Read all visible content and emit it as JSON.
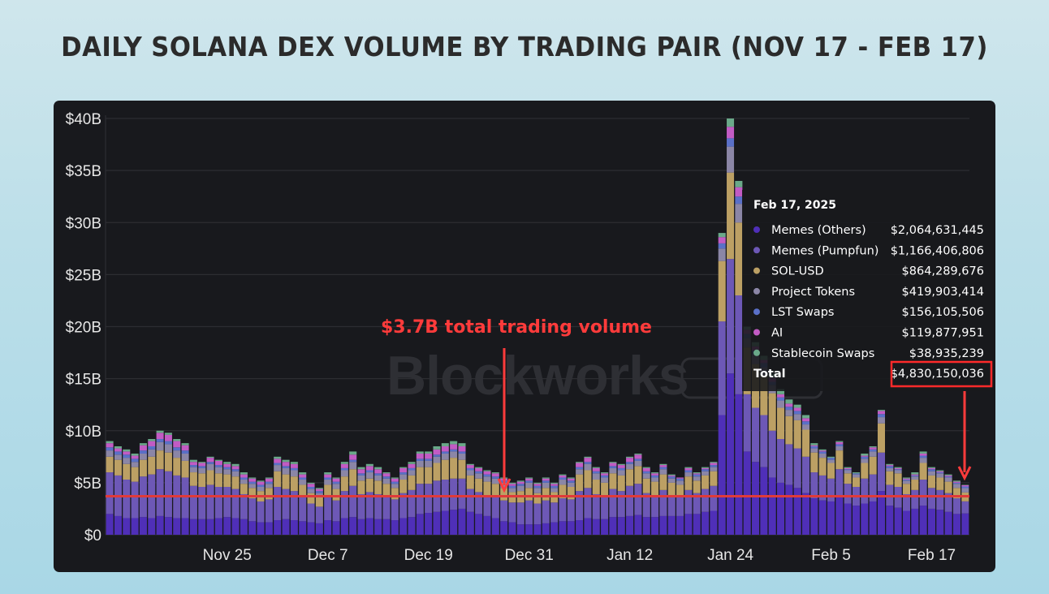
{
  "title": "DAILY SOLANA DEX VOLUME BY TRADING PAIR (NOV 17 - FEB 17)",
  "watermark": "Blockworks",
  "annotation": "$3.7B total trading volume",
  "colors": {
    "Memes (Others)": "#4f2fb8",
    "Memes (Pumpfun)": "#6d58b6",
    "SOL-USD": "#bca064",
    "Project Tokens": "#8b86a6",
    "LST Swaps": "#5a70c8",
    "AI": "#c25bc4",
    "Stablecoin Swaps": "#6aa989",
    "reference_line": "#e03a3a",
    "annotation": "#ff3b3b"
  },
  "tooltip": {
    "date": "Feb 17, 2025",
    "rows": [
      {
        "name": "Memes (Others)",
        "value": "$2,064,631,445"
      },
      {
        "name": "Memes (Pumpfun)",
        "value": "$1,166,406,806"
      },
      {
        "name": "SOL-USD",
        "value": "$864,289,676"
      },
      {
        "name": "Project Tokens",
        "value": "$419,903,414"
      },
      {
        "name": "LST Swaps",
        "value": "$156,105,506"
      },
      {
        "name": "AI",
        "value": "$119,877,951"
      },
      {
        "name": "Stablecoin Swaps",
        "value": "$38,935,239"
      }
    ],
    "total_label": "Total",
    "total_value": "$4,830,150,036"
  },
  "chart_data": {
    "type": "bar",
    "stacked": true,
    "ylim": [
      0,
      40
    ],
    "y_unit": "billions USD",
    "y_ticks": [
      "$0",
      "$5B",
      "$10B",
      "$15B",
      "$20B",
      "$25B",
      "$30B",
      "$35B",
      "$40B"
    ],
    "x_ticks": [
      {
        "label": "Nov 25",
        "index": 14
      },
      {
        "label": "Dec 7",
        "index": 26
      },
      {
        "label": "Dec 19",
        "index": 38
      },
      {
        "label": "Dec 31",
        "index": 50
      },
      {
        "label": "Jan 12",
        "index": 62
      },
      {
        "label": "Jan 24",
        "index": 74
      },
      {
        "label": "Feb 5",
        "index": 86
      },
      {
        "label": "Feb 17",
        "index": 98
      }
    ],
    "reference_line": 3.7,
    "series_names": [
      "Memes (Others)",
      "Memes (Pumpfun)",
      "SOL-USD",
      "Project Tokens",
      "LST Swaps",
      "AI",
      "Stablecoin Swaps"
    ],
    "totals": [
      9.0,
      8.5,
      8.2,
      7.8,
      8.8,
      9.2,
      10.0,
      9.8,
      9.2,
      8.8,
      7.2,
      7.0,
      7.5,
      7.2,
      7.0,
      6.8,
      6.0,
      5.5,
      5.2,
      5.5,
      7.5,
      7.2,
      7.0,
      6.0,
      5.0,
      4.5,
      6.0,
      5.5,
      7.0,
      8.0,
      6.5,
      6.8,
      6.5,
      6.0,
      5.5,
      6.5,
      7.0,
      8.0,
      8.0,
      8.5,
      8.8,
      9.0,
      8.8,
      6.8,
      6.5,
      6.2,
      6.0,
      5.5,
      5.0,
      5.2,
      5.5,
      5.0,
      5.5,
      5.0,
      5.8,
      5.5,
      7.0,
      7.5,
      6.5,
      6.0,
      7.0,
      6.8,
      7.5,
      7.8,
      6.5,
      6.0,
      6.8,
      5.8,
      5.5,
      6.5,
      6.0,
      6.5,
      7.0,
      29.0,
      40.0,
      34.0,
      20.0,
      18.5,
      17.2,
      15.5,
      14.0,
      13.0,
      12.5,
      11.5,
      8.8,
      8.2,
      7.5,
      9.0,
      6.5,
      6.0,
      7.8,
      8.5,
      12.0,
      6.8,
      6.5,
      5.5,
      6.0,
      8.0,
      6.5,
      6.2,
      5.8,
      5.2,
      4.8
    ],
    "memes_others": [
      2.0,
      1.8,
      1.6,
      1.6,
      1.7,
      1.6,
      1.8,
      1.7,
      1.6,
      1.6,
      1.5,
      1.5,
      1.5,
      1.6,
      1.7,
      1.6,
      1.5,
      1.3,
      1.2,
      1.2,
      1.4,
      1.5,
      1.4,
      1.3,
      1.2,
      1.1,
      1.4,
      1.3,
      1.6,
      1.7,
      1.5,
      1.6,
      1.5,
      1.5,
      1.4,
      1.6,
      1.7,
      2.0,
      2.1,
      2.2,
      2.3,
      2.4,
      2.5,
      2.2,
      2.0,
      1.8,
      1.6,
      1.3,
      1.2,
      1.0,
      1.0,
      1.0,
      1.1,
      1.2,
      1.3,
      1.3,
      1.4,
      1.6,
      1.5,
      1.5,
      1.7,
      1.7,
      1.8,
      1.9,
      1.7,
      1.7,
      1.8,
      1.8,
      1.8,
      2.0,
      2.0,
      2.2,
      2.3,
      11.5,
      15.5,
      13.5,
      8.0,
      7.0,
      6.5,
      5.5,
      5.0,
      4.8,
      4.5,
      4.0,
      3.5,
      3.3,
      3.2,
      3.6,
      3.0,
      2.8,
      3.0,
      3.2,
      4.2,
      2.8,
      2.6,
      2.3,
      2.5,
      2.8,
      2.5,
      2.4,
      2.2,
      2.0,
      2.06
    ],
    "memes_pumpfun": [
      4.0,
      3.9,
      3.7,
      3.5,
      3.9,
      4.2,
      4.5,
      4.4,
      4.1,
      3.9,
      3.2,
      3.1,
      3.3,
      3.0,
      2.9,
      2.8,
      2.4,
      2.2,
      2.0,
      2.2,
      3.2,
      2.9,
      2.8,
      2.3,
      1.8,
      1.6,
      2.2,
      2.0,
      2.6,
      3.0,
      2.4,
      2.5,
      2.4,
      2.2,
      2.0,
      2.4,
      2.6,
      2.9,
      2.8,
      3.0,
      3.0,
      3.0,
      2.9,
      2.2,
      2.1,
      2.0,
      2.0,
      2.0,
      1.9,
      2.1,
      2.3,
      2.0,
      2.2,
      1.9,
      2.2,
      2.1,
      2.8,
      2.9,
      2.4,
      2.2,
      2.7,
      2.5,
      2.9,
      3.0,
      2.3,
      2.1,
      2.5,
      2.0,
      1.9,
      2.3,
      2.0,
      2.2,
      2.4,
      9.0,
      11.0,
      9.5,
      5.5,
      5.2,
      5.0,
      4.5,
      4.2,
      3.9,
      3.8,
      3.5,
      2.5,
      2.4,
      2.2,
      2.7,
      1.9,
      1.8,
      2.4,
      2.6,
      3.7,
      2.0,
      2.0,
      1.6,
      1.8,
      2.5,
      2.0,
      1.9,
      1.8,
      1.5,
      1.17
    ],
    "sol_usd": [
      1.5,
      1.5,
      1.5,
      1.4,
      1.6,
      1.7,
      1.8,
      1.8,
      1.7,
      1.6,
      1.3,
      1.3,
      1.4,
      1.3,
      1.2,
      1.2,
      1.0,
      1.0,
      1.0,
      1.1,
      1.5,
      1.4,
      1.4,
      1.2,
      1.0,
      0.9,
      1.2,
      1.1,
      1.4,
      1.6,
      1.3,
      1.3,
      1.3,
      1.2,
      1.1,
      1.3,
      1.4,
      1.6,
      1.6,
      1.7,
      1.9,
      2.0,
      1.8,
      1.3,
      1.3,
      1.3,
      1.3,
      1.2,
      1.0,
      1.1,
      1.2,
      1.0,
      1.2,
      1.0,
      1.3,
      1.2,
      1.6,
      1.7,
      1.4,
      1.3,
      1.5,
      1.5,
      1.6,
      1.7,
      1.4,
      1.3,
      1.5,
      1.2,
      1.1,
      1.3,
      1.2,
      1.3,
      1.4,
      5.8,
      8.3,
      7.0,
      4.5,
      4.2,
      3.8,
      3.6,
      3.0,
      2.7,
      2.7,
      2.6,
      1.9,
      1.7,
      1.5,
      1.8,
      1.0,
      0.9,
      1.5,
      1.7,
      2.8,
      1.3,
      1.3,
      1.0,
      1.0,
      1.6,
      1.2,
      1.2,
      1.1,
      1.0,
      0.86
    ],
    "project_tokens": [
      0.6,
      0.5,
      0.6,
      0.5,
      0.6,
      0.7,
      0.8,
      0.8,
      0.7,
      0.7,
      0.5,
      0.5,
      0.6,
      0.6,
      0.5,
      0.5,
      0.4,
      0.4,
      0.4,
      0.4,
      0.6,
      0.6,
      0.6,
      0.5,
      0.4,
      0.4,
      0.5,
      0.5,
      0.6,
      0.7,
      0.5,
      0.6,
      0.5,
      0.5,
      0.4,
      0.5,
      0.5,
      0.6,
      0.6,
      0.6,
      0.6,
      0.6,
      0.6,
      0.5,
      0.5,
      0.5,
      0.5,
      0.5,
      0.4,
      0.5,
      0.5,
      0.5,
      0.5,
      0.4,
      0.5,
      0.4,
      0.5,
      0.6,
      0.6,
      0.5,
      0.5,
      0.5,
      0.5,
      0.5,
      0.5,
      0.4,
      0.5,
      0.4,
      0.4,
      0.4,
      0.4,
      0.4,
      0.4,
      1.2,
      2.5,
      1.8,
      0.9,
      0.9,
      0.8,
      0.8,
      0.7,
      0.6,
      0.6,
      0.5,
      0.4,
      0.4,
      0.3,
      0.4,
      0.3,
      0.3,
      0.4,
      0.5,
      0.6,
      0.3,
      0.3,
      0.3,
      0.3,
      0.5,
      0.4,
      0.4,
      0.4,
      0.4,
      0.42
    ],
    "lst_swaps": [
      0.3,
      0.3,
      0.3,
      0.3,
      0.3,
      0.3,
      0.3,
      0.3,
      0.3,
      0.3,
      0.2,
      0.2,
      0.2,
      0.2,
      0.2,
      0.2,
      0.2,
      0.2,
      0.2,
      0.2,
      0.2,
      0.2,
      0.2,
      0.2,
      0.2,
      0.2,
      0.2,
      0.2,
      0.2,
      0.2,
      0.2,
      0.2,
      0.2,
      0.2,
      0.2,
      0.2,
      0.2,
      0.2,
      0.2,
      0.2,
      0.2,
      0.2,
      0.2,
      0.2,
      0.2,
      0.2,
      0.2,
      0.2,
      0.2,
      0.2,
      0.2,
      0.2,
      0.2,
      0.2,
      0.2,
      0.2,
      0.2,
      0.2,
      0.2,
      0.2,
      0.2,
      0.2,
      0.2,
      0.2,
      0.2,
      0.2,
      0.2,
      0.2,
      0.2,
      0.2,
      0.2,
      0.2,
      0.2,
      0.5,
      0.8,
      0.7,
      0.4,
      0.4,
      0.4,
      0.3,
      0.3,
      0.3,
      0.3,
      0.3,
      0.2,
      0.2,
      0.2,
      0.2,
      0.1,
      0.1,
      0.2,
      0.2,
      0.3,
      0.2,
      0.1,
      0.1,
      0.1,
      0.2,
      0.2,
      0.1,
      0.1,
      0.1,
      0.16
    ],
    "ai": [
      0.4,
      0.3,
      0.3,
      0.3,
      0.5,
      0.5,
      0.6,
      0.6,
      0.6,
      0.5,
      0.3,
      0.3,
      0.4,
      0.4,
      0.3,
      0.3,
      0.3,
      0.3,
      0.3,
      0.3,
      0.4,
      0.4,
      0.4,
      0.3,
      0.3,
      0.2,
      0.3,
      0.3,
      0.4,
      0.5,
      0.4,
      0.4,
      0.4,
      0.3,
      0.3,
      0.4,
      0.4,
      0.5,
      0.5,
      0.5,
      0.5,
      0.5,
      0.5,
      0.3,
      0.3,
      0.3,
      0.3,
      0.2,
      0.2,
      0.2,
      0.2,
      0.2,
      0.2,
      0.2,
      0.2,
      0.2,
      0.4,
      0.4,
      0.3,
      0.2,
      0.3,
      0.3,
      0.4,
      0.4,
      0.3,
      0.2,
      0.2,
      0.1,
      0.1,
      0.2,
      0.1,
      0.1,
      0.2,
      0.6,
      1.1,
      0.9,
      0.4,
      0.4,
      0.3,
      0.4,
      0.3,
      0.3,
      0.3,
      0.3,
      0.1,
      0.1,
      0.0,
      0.2,
      0.1,
      0.0,
      0.1,
      0.2,
      0.3,
      0.1,
      0.1,
      0.1,
      0.1,
      0.2,
      0.1,
      0.1,
      0.1,
      0.1,
      0.12
    ],
    "stablecoin_swaps": [
      0.2,
      0.2,
      0.2,
      0.2,
      0.2,
      0.2,
      0.2,
      0.2,
      0.2,
      0.2,
      0.2,
      0.1,
      0.1,
      0.1,
      0.2,
      0.2,
      0.2,
      0.1,
      0.1,
      0.1,
      0.2,
      0.2,
      0.2,
      0.2,
      0.1,
      0.1,
      0.2,
      0.1,
      0.2,
      0.3,
      0.2,
      0.2,
      0.2,
      0.1,
      0.1,
      0.1,
      0.2,
      0.2,
      0.2,
      0.3,
      0.3,
      0.3,
      0.3,
      0.1,
      0.1,
      0.1,
      0.1,
      0.1,
      0.1,
      0.1,
      0.1,
      0.1,
      0.1,
      0.1,
      0.1,
      0.1,
      0.1,
      0.1,
      0.1,
      0.1,
      0.1,
      0.1,
      0.1,
      0.1,
      0.1,
      0.1,
      0.1,
      0.1,
      0.0,
      0.1,
      0.1,
      0.1,
      0.1,
      0.4,
      0.8,
      0.6,
      0.3,
      0.4,
      0.4,
      0.4,
      0.5,
      0.4,
      0.3,
      0.3,
      0.2,
      0.1,
      0.1,
      0.1,
      0.1,
      0.1,
      0.2,
      0.1,
      0.1,
      0.1,
      0.1,
      0.1,
      0.2,
      0.2,
      0.1,
      0.1,
      0.1,
      0.1,
      0.04
    ]
  }
}
